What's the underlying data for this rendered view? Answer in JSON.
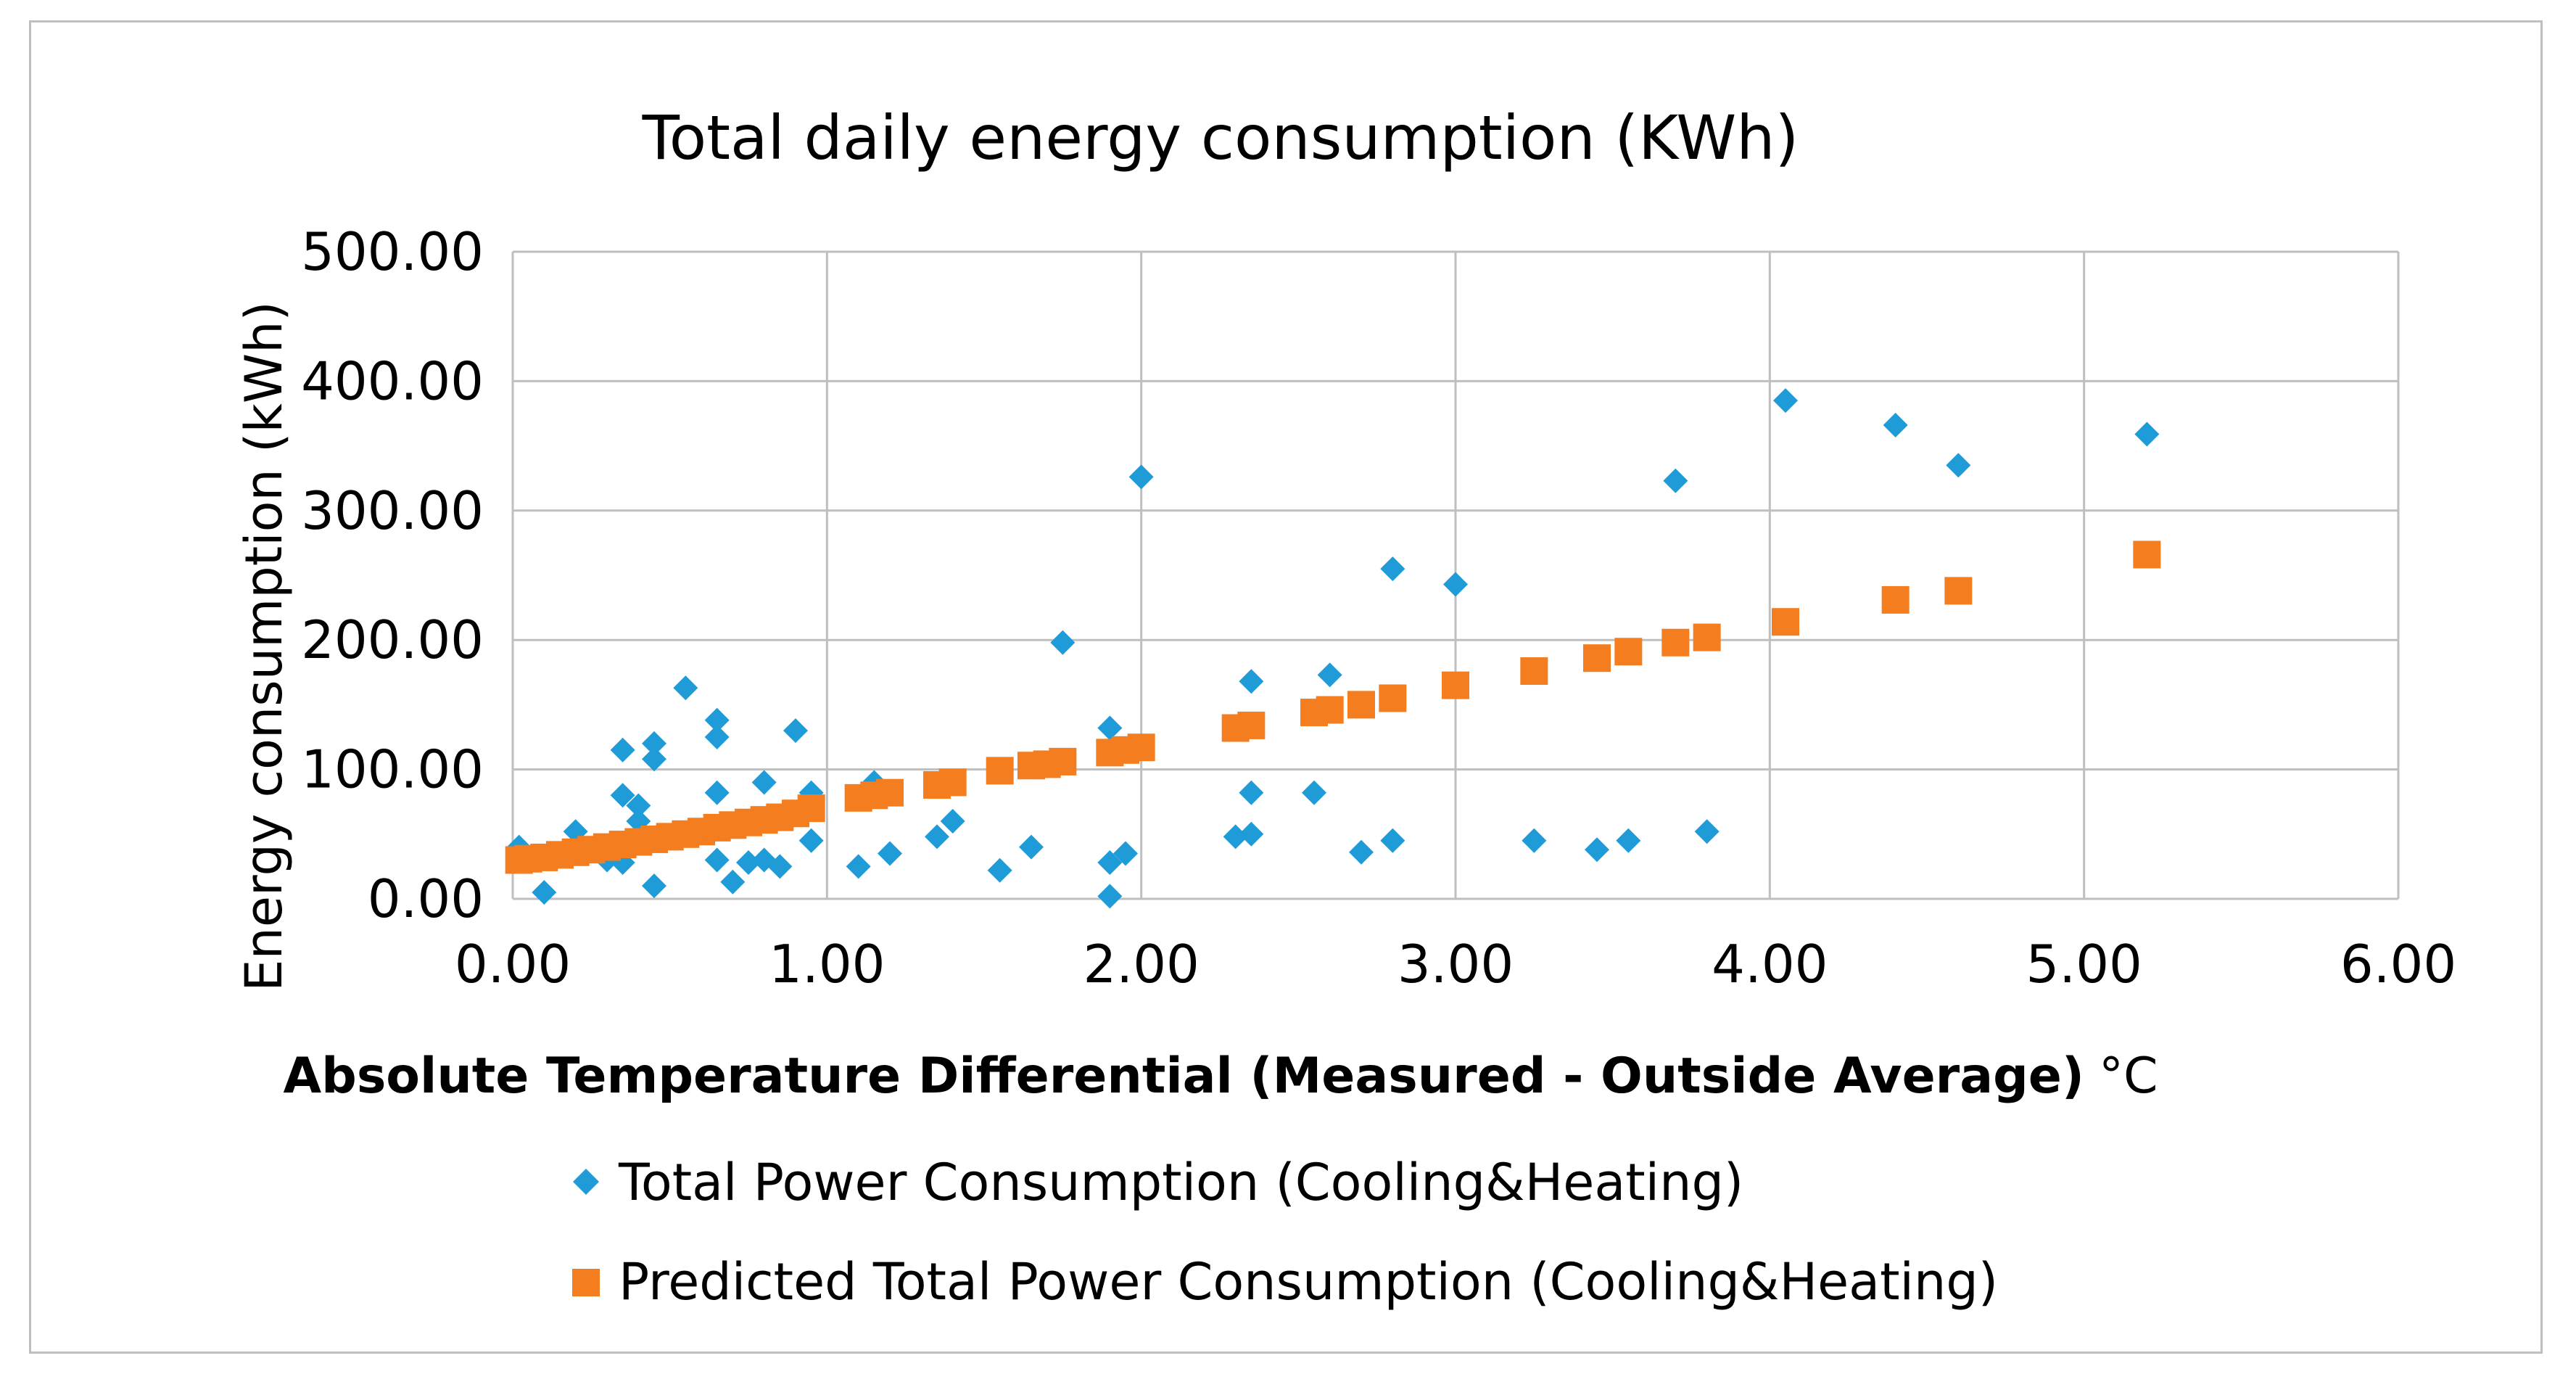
{
  "chart_data": {
    "type": "scatter",
    "title": "Total daily energy consumption (KWh)",
    "xlabel": "Absolute Temperature Differential (Measured - Outside Average)",
    "xlabel_unit": "°C",
    "ylabel": "Energy consumption (kWh)",
    "xlim": [
      0,
      6
    ],
    "ylim": [
      0,
      500
    ],
    "x_ticks": [
      "0.00",
      "1.00",
      "2.00",
      "3.00",
      "4.00",
      "5.00",
      "6.00"
    ],
    "y_ticks": [
      "0.00",
      "100.00",
      "200.00",
      "300.00",
      "400.00",
      "500.00"
    ],
    "grid": true,
    "legend_position": "bottom",
    "series": [
      {
        "name": "Total Power Consumption (Cooling&Heating)",
        "marker": "diamond",
        "color": "#1f9bd7",
        "points": [
          [
            0.02,
            40
          ],
          [
            0.1,
            5
          ],
          [
            0.2,
            52
          ],
          [
            0.3,
            30
          ],
          [
            0.35,
            115
          ],
          [
            0.35,
            80
          ],
          [
            0.35,
            28
          ],
          [
            0.4,
            72
          ],
          [
            0.4,
            60
          ],
          [
            0.45,
            120
          ],
          [
            0.45,
            108
          ],
          [
            0.45,
            10
          ],
          [
            0.55,
            163
          ],
          [
            0.65,
            138
          ],
          [
            0.65,
            125
          ],
          [
            0.65,
            82
          ],
          [
            0.65,
            30
          ],
          [
            0.7,
            13
          ],
          [
            0.75,
            28
          ],
          [
            0.8,
            90
          ],
          [
            0.8,
            30
          ],
          [
            0.85,
            25
          ],
          [
            0.9,
            130
          ],
          [
            0.95,
            82
          ],
          [
            0.95,
            45
          ],
          [
            1.1,
            25
          ],
          [
            1.15,
            90
          ],
          [
            1.2,
            35
          ],
          [
            1.35,
            48
          ],
          [
            1.4,
            60
          ],
          [
            1.55,
            22
          ],
          [
            1.65,
            40
          ],
          [
            1.75,
            198
          ],
          [
            1.9,
            132
          ],
          [
            1.9,
            28
          ],
          [
            1.9,
            2
          ],
          [
            1.95,
            35
          ],
          [
            2.0,
            326
          ],
          [
            2.3,
            48
          ],
          [
            2.35,
            168
          ],
          [
            2.35,
            82
          ],
          [
            2.35,
            50
          ],
          [
            2.55,
            82
          ],
          [
            2.6,
            173
          ],
          [
            2.7,
            36
          ],
          [
            2.8,
            255
          ],
          [
            2.8,
            45
          ],
          [
            3.0,
            243
          ],
          [
            3.25,
            45
          ],
          [
            3.45,
            38
          ],
          [
            3.55,
            45
          ],
          [
            3.7,
            323
          ],
          [
            3.8,
            52
          ],
          [
            4.05,
            385
          ],
          [
            4.4,
            366
          ],
          [
            4.6,
            335
          ],
          [
            5.2,
            359
          ]
        ]
      },
      {
        "name": "Predicted Total Power Consumption (Cooling&Heating)",
        "marker": "square",
        "color": "#f47d20",
        "points": [
          [
            0.02,
            30
          ],
          [
            0.05,
            31
          ],
          [
            0.1,
            32
          ],
          [
            0.15,
            34
          ],
          [
            0.2,
            36
          ],
          [
            0.25,
            38
          ],
          [
            0.3,
            40
          ],
          [
            0.35,
            42
          ],
          [
            0.4,
            44
          ],
          [
            0.45,
            46
          ],
          [
            0.5,
            48
          ],
          [
            0.55,
            50
          ],
          [
            0.6,
            52
          ],
          [
            0.65,
            55
          ],
          [
            0.7,
            57
          ],
          [
            0.75,
            59
          ],
          [
            0.8,
            61
          ],
          [
            0.85,
            63
          ],
          [
            0.9,
            66
          ],
          [
            0.95,
            70
          ],
          [
            1.1,
            78
          ],
          [
            1.15,
            80
          ],
          [
            1.2,
            82
          ],
          [
            1.35,
            88
          ],
          [
            1.4,
            90
          ],
          [
            1.55,
            99
          ],
          [
            1.65,
            103
          ],
          [
            1.7,
            104
          ],
          [
            1.75,
            106
          ],
          [
            1.9,
            113
          ],
          [
            1.95,
            115
          ],
          [
            2.0,
            117
          ],
          [
            2.3,
            132
          ],
          [
            2.35,
            134
          ],
          [
            2.55,
            144
          ],
          [
            2.6,
            146
          ],
          [
            2.7,
            150
          ],
          [
            2.8,
            155
          ],
          [
            3.0,
            165
          ],
          [
            3.25,
            176
          ],
          [
            3.45,
            186
          ],
          [
            3.55,
            191
          ],
          [
            3.7,
            198
          ],
          [
            3.8,
            202
          ],
          [
            4.05,
            214
          ],
          [
            4.4,
            231
          ],
          [
            4.6,
            238
          ],
          [
            5.2,
            266
          ]
        ]
      }
    ]
  }
}
